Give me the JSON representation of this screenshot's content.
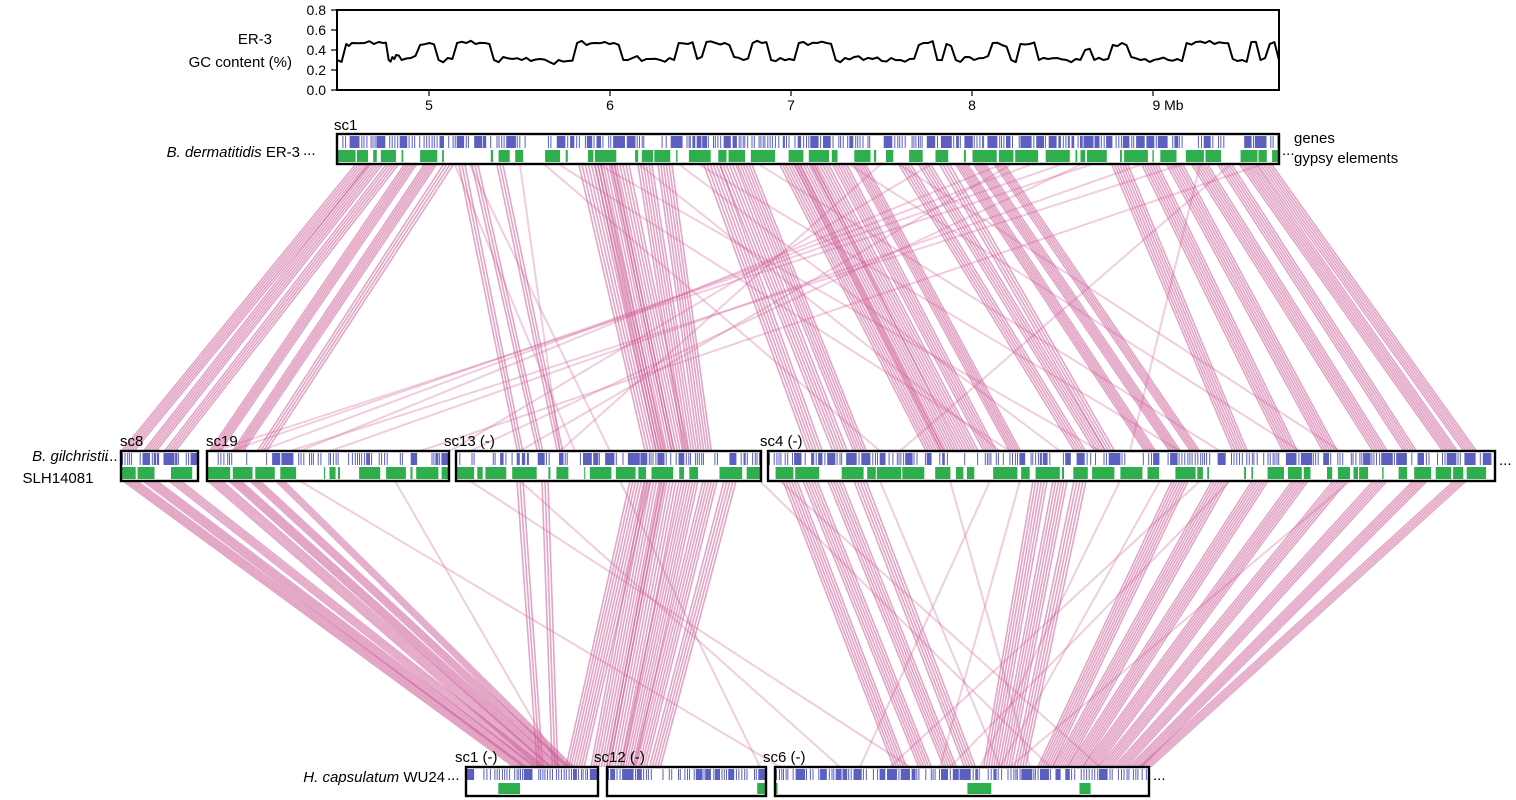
{
  "gc_panel": {
    "ylabel_line1": "ER-3",
    "ylabel_line2": "GC content (%)",
    "yticks": [
      "0.8",
      "0.6",
      "0.4",
      "0.2",
      "0.0"
    ],
    "xticks": [
      "5",
      "6",
      "7",
      "8",
      "9 Mb"
    ]
  },
  "chart_data": {
    "type": "line",
    "ylabel": "ER-3 GC content (%)",
    "ylim": [
      0.0,
      0.8
    ],
    "xlim": [
      4.5,
      9.6
    ],
    "xticks": [
      5,
      6,
      7,
      8,
      9
    ],
    "series": [
      {
        "x": [
          4.5,
          4.55,
          4.58,
          4.65,
          4.7,
          4.75,
          4.78,
          4.8,
          4.82,
          4.85,
          4.9,
          4.95,
          5.0,
          5.05,
          5.1,
          5.15,
          5.2,
          5.25,
          5.3,
          5.35,
          5.4,
          5.45,
          5.5,
          5.55,
          5.6,
          5.65,
          5.7,
          5.75,
          5.8,
          5.85,
          5.9,
          5.95,
          6.0,
          6.05,
          6.1,
          6.15,
          6.2,
          6.25,
          6.3,
          6.35,
          6.4,
          6.45,
          6.5,
          6.55,
          6.6,
          6.65,
          6.7,
          6.75,
          6.8,
          6.85,
          6.9,
          6.95,
          7.0,
          7.05,
          7.1,
          7.15,
          7.2,
          7.25,
          7.3,
          7.35,
          7.4,
          7.45,
          7.5,
          7.55,
          7.6,
          7.65,
          7.7,
          7.75,
          7.8,
          7.85,
          7.9,
          7.95,
          8.0,
          8.05,
          8.1,
          8.15,
          8.2,
          8.25,
          8.3,
          8.35,
          8.4,
          8.45,
          8.5,
          8.55,
          8.6,
          8.65,
          8.7,
          8.75,
          8.8,
          8.85,
          8.9,
          8.95,
          9.0,
          9.05,
          9.1,
          9.15,
          9.2,
          9.25,
          9.3,
          9.35,
          9.4,
          9.45,
          9.5,
          9.55,
          9.6
        ],
        "values": [
          0.3,
          0.46,
          0.47,
          0.47,
          0.46,
          0.47,
          0.3,
          0.33,
          0.35,
          0.3,
          0.32,
          0.45,
          0.47,
          0.3,
          0.32,
          0.47,
          0.47,
          0.46,
          0.47,
          0.3,
          0.33,
          0.31,
          0.3,
          0.29,
          0.31,
          0.28,
          0.3,
          0.29,
          0.47,
          0.45,
          0.47,
          0.48,
          0.47,
          0.3,
          0.32,
          0.29,
          0.31,
          0.3,
          0.32,
          0.47,
          0.46,
          0.31,
          0.48,
          0.47,
          0.47,
          0.33,
          0.3,
          0.47,
          0.47,
          0.3,
          0.32,
          0.31,
          0.47,
          0.45,
          0.47,
          0.47,
          0.3,
          0.32,
          0.33,
          0.3,
          0.31,
          0.29,
          0.32,
          0.3,
          0.31,
          0.45,
          0.47,
          0.3,
          0.46,
          0.3,
          0.33,
          0.3,
          0.32,
          0.47,
          0.45,
          0.3,
          0.46,
          0.46,
          0.3,
          0.31,
          0.32,
          0.3,
          0.31,
          0.4,
          0.3,
          0.3,
          0.45,
          0.47,
          0.33,
          0.3,
          0.28,
          0.31,
          0.3,
          0.31,
          0.47,
          0.48,
          0.47,
          0.46,
          0.47,
          0.31,
          0.3,
          0.48,
          0.3,
          0.46,
          0.3
        ]
      }
    ]
  },
  "tracks": {
    "top": {
      "species_italic": "B. dermatitidis",
      "species_rest": " ER-3",
      "ellipsis_left": "...",
      "ellipsis_right": "...",
      "legend_genes": "genes",
      "legend_gypsy": "gypsy elements",
      "scaffolds": [
        {
          "label": "sc1"
        }
      ]
    },
    "middle": {
      "species_italic": "B. gilchristii",
      "ellipsis_left": "...",
      "species_line2": "SLH14081",
      "ellipsis_right": "...",
      "scaffolds": [
        {
          "label": "sc8"
        },
        {
          "label": "sc19"
        },
        {
          "label": "sc13 (-)"
        },
        {
          "label": "sc4 (-)"
        }
      ]
    },
    "bottom": {
      "species_italic": "H. capsulatum",
      "species_rest": " WU24",
      "ellipsis_left": "...",
      "ellipsis_right": "...",
      "scaffolds": [
        {
          "label": "sc1 (-)"
        },
        {
          "label": "sc12 (-)"
        },
        {
          "label": "sc6 (-)"
        }
      ]
    }
  },
  "colors": {
    "genes": "#5b5fbf",
    "gypsy": "#2fae4e",
    "synteny": "#cc5b95",
    "frame": "#000000"
  }
}
